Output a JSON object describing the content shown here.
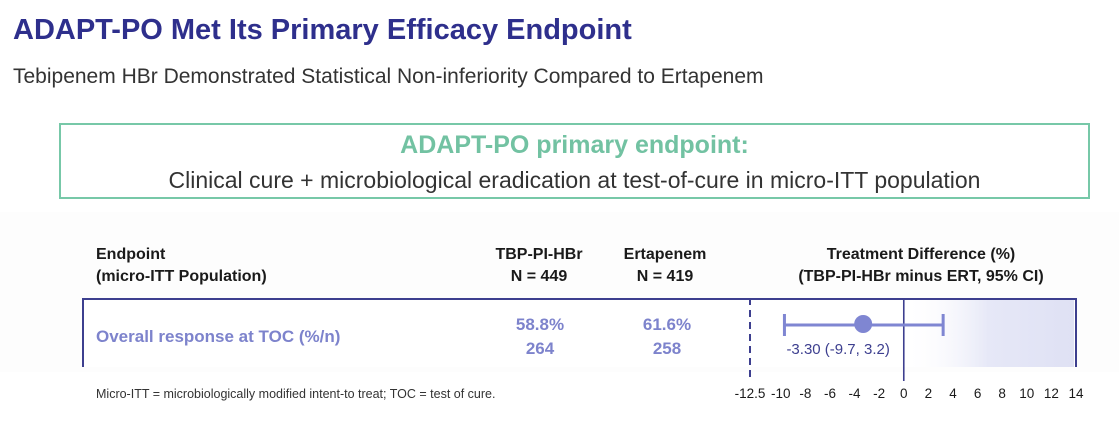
{
  "header": {
    "title": "ADAPT-PO Met Its Primary Efficacy Endpoint",
    "subtitle": "Tebipenem HBr Demonstrated Statistical Non-inferiority Compared to Ertapenem"
  },
  "endpoint_box": {
    "heading": "ADAPT-PO primary endpoint:",
    "description": "Clinical cure + microbiological eradication at test-of-cure in micro-ITT population"
  },
  "table": {
    "columns": {
      "endpoint": [
        "Endpoint",
        "(micro-ITT Population)"
      ],
      "tbp": [
        "TBP-PI-HBr",
        "N = 449"
      ],
      "ertapenem": [
        "Ertapenem",
        "N = 419"
      ],
      "difference": [
        "Treatment Difference (%)",
        "(TBP-PI-HBr minus ERT, 95% CI)"
      ]
    },
    "row": {
      "label": "Overall response at TOC (%/n)",
      "tbp_pct": "58.8%",
      "tbp_n": "264",
      "ert_pct": "61.6%",
      "ert_n": "258",
      "diff_label": "-3.30 (-9.7, 3.2)"
    }
  },
  "chart_data": {
    "type": "forest",
    "estimate": -3.3,
    "ci_lower": -9.7,
    "ci_upper": 3.2,
    "xlim": [
      -12.5,
      14
    ],
    "ticks": [
      -12.5,
      -10,
      -8,
      -6,
      -4,
      -2,
      0,
      2,
      4,
      6,
      8,
      10,
      12,
      14
    ],
    "tick_labels": [
      "-12.5",
      "-10",
      "-8",
      "-6",
      "-4",
      "-2",
      "0",
      "2",
      "4",
      "6",
      "8",
      "10",
      "12",
      "14"
    ],
    "noninferiority_margin": -12.5,
    "reference_line": 0,
    "colors": {
      "point": "#7f86d2",
      "zero_line": "#3d3f8f",
      "margin_line": "#3d3f8f",
      "shade": "#e3e5f6"
    }
  },
  "footnote": "Micro-ITT = microbiologically modified intent-to treat; TOC = test of cure."
}
